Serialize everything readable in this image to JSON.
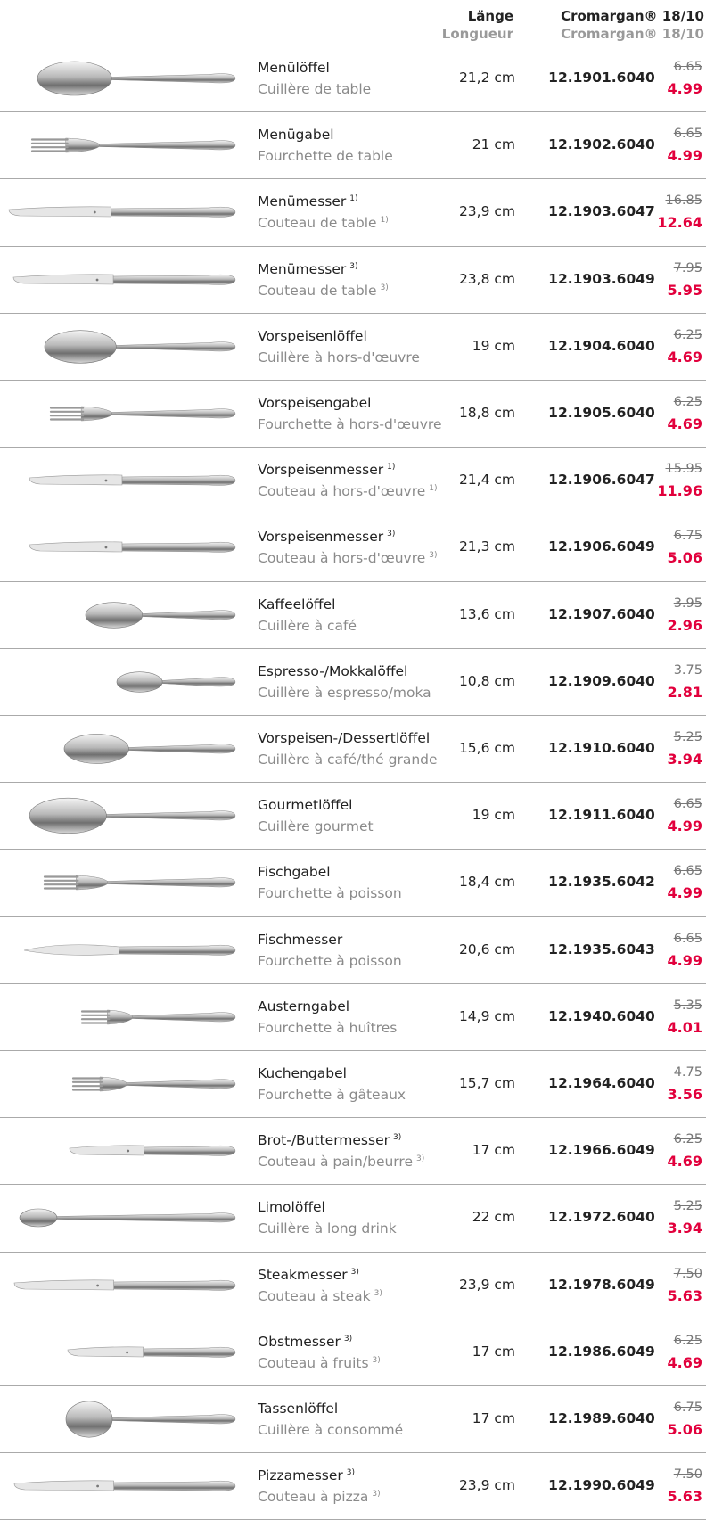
{
  "header": {
    "length_de": "Länge",
    "length_fr": "Longueur",
    "material_de": "Cromargan® 18/10",
    "material_fr": "Cromargan® 18/10"
  },
  "rows": [
    {
      "name_de": "Menülöffel",
      "name_fr": "Cuillère de table",
      "length": "21,2 cm",
      "article": "12.1901.6040",
      "old_price": "6.65",
      "price": "4.99"
    },
    {
      "name_de": "Menügabel",
      "name_fr": "Fourchette de table",
      "length": "21 cm",
      "article": "12.1902.6040",
      "old_price": "6.65",
      "price": "4.99"
    },
    {
      "name_de": "Menümesser",
      "note": "1)",
      "name_fr": "Couteau de table",
      "length": "23,9 cm",
      "article": "12.1903.6047",
      "old_price": "16.85",
      "price": "12.64"
    },
    {
      "name_de": "Menümesser",
      "note": "3)",
      "name_fr": "Couteau de table",
      "length": "23,8 cm",
      "article": "12.1903.6049",
      "old_price": "7.95",
      "price": "5.95"
    },
    {
      "name_de": "Vorspeisenlöffel",
      "name_fr": "Cuillère à hors-d'œuvre",
      "length": "19 cm",
      "article": "12.1904.6040",
      "old_price": "6.25",
      "price": "4.69"
    },
    {
      "name_de": "Vorspeisengabel",
      "name_fr": "Fourchette à hors-d'œuvre",
      "length": "18,8 cm",
      "article": "12.1905.6040",
      "old_price": "6.25",
      "price": "4.69"
    },
    {
      "name_de": "Vorspeisenmesser",
      "note": "1)",
      "name_fr": "Couteau à hors-d'œuvre",
      "length": "21,4 cm",
      "article": "12.1906.6047",
      "old_price": "15.95",
      "price": "11.96"
    },
    {
      "name_de": "Vorspeisenmesser",
      "note": "3)",
      "name_fr": "Couteau à hors-d'œuvre",
      "length": "21,3 cm",
      "article": "12.1906.6049",
      "old_price": "6.75",
      "price": "5.06"
    },
    {
      "name_de": "Kaffeelöffel",
      "name_fr": "Cuillère à café",
      "length": "13,6 cm",
      "article": "12.1907.6040",
      "old_price": "3.95",
      "price": "2.96"
    },
    {
      "name_de": "Espresso-/Mokkalöffel",
      "name_fr": "Cuillère à espresso/moka",
      "length": "10,8 cm",
      "article": "12.1909.6040",
      "old_price": "3.75",
      "price": "2.81"
    },
    {
      "name_de": "Vorspeisen-/Dessertlöffel",
      "name_fr": "Cuillère à café/thé grande",
      "length": "15,6 cm",
      "article": "12.1910.6040",
      "old_price": "5.25",
      "price": "3.94"
    },
    {
      "name_de": "Gourmetlöffel",
      "name_fr": "Cuillère gourmet",
      "length": "19 cm",
      "article": "12.1911.6040",
      "old_price": "6.65",
      "price": "4.99"
    },
    {
      "name_de": "Fischgabel",
      "name_fr": "Fourchette à poisson",
      "length": "18,4 cm",
      "article": "12.1935.6042",
      "old_price": "6.65",
      "price": "4.99"
    },
    {
      "name_de": "Fischmesser",
      "name_fr": "Fourchette à poisson",
      "length": "20,6 cm",
      "article": "12.1935.6043",
      "old_price": "6.65",
      "price": "4.99"
    },
    {
      "name_de": "Austerngabel",
      "name_fr": "Fourchette à huîtres",
      "length": "14,9 cm",
      "article": "12.1940.6040",
      "old_price": "5.35",
      "price": "4.01"
    },
    {
      "name_de": "Kuchengabel",
      "name_fr": "Fourchette à gâteaux",
      "length": "15,7 cm",
      "article": "12.1964.6040",
      "old_price": "4.75",
      "price": "3.56"
    },
    {
      "name_de": "Brot-/Buttermesser",
      "note": "3)",
      "name_fr": "Couteau à pain/beurre",
      "length": "17 cm",
      "article": "12.1966.6049",
      "old_price": "6.25",
      "price": "4.69"
    },
    {
      "name_de": "Limolöffel",
      "name_fr": "Cuillère à long drink",
      "length": "22 cm",
      "article": "12.1972.6040",
      "old_price": "5.25",
      "price": "3.94"
    },
    {
      "name_de": "Steakmesser",
      "note": "3)",
      "name_fr": "Couteau à steak",
      "length": "23,9 cm",
      "article": "12.1978.6049",
      "old_price": "7.50",
      "price": "5.63"
    },
    {
      "name_de": "Obstmesser",
      "note": "3)",
      "name_fr": "Couteau à fruits",
      "length": "17 cm",
      "article": "12.1986.6049",
      "old_price": "6.25",
      "price": "4.69"
    },
    {
      "name_de": "Tassenlöffel",
      "name_fr": "Cuillère à consommé",
      "length": "17 cm",
      "article": "12.1989.6040",
      "old_price": "6.75",
      "price": "5.06"
    },
    {
      "name_de": "Pizzamesser",
      "note": "3)",
      "name_fr": "Couteau à pizza",
      "length": "23,9 cm",
      "article": "12.1990.6049",
      "old_price": "7.50",
      "price": "5.63"
    }
  ]
}
